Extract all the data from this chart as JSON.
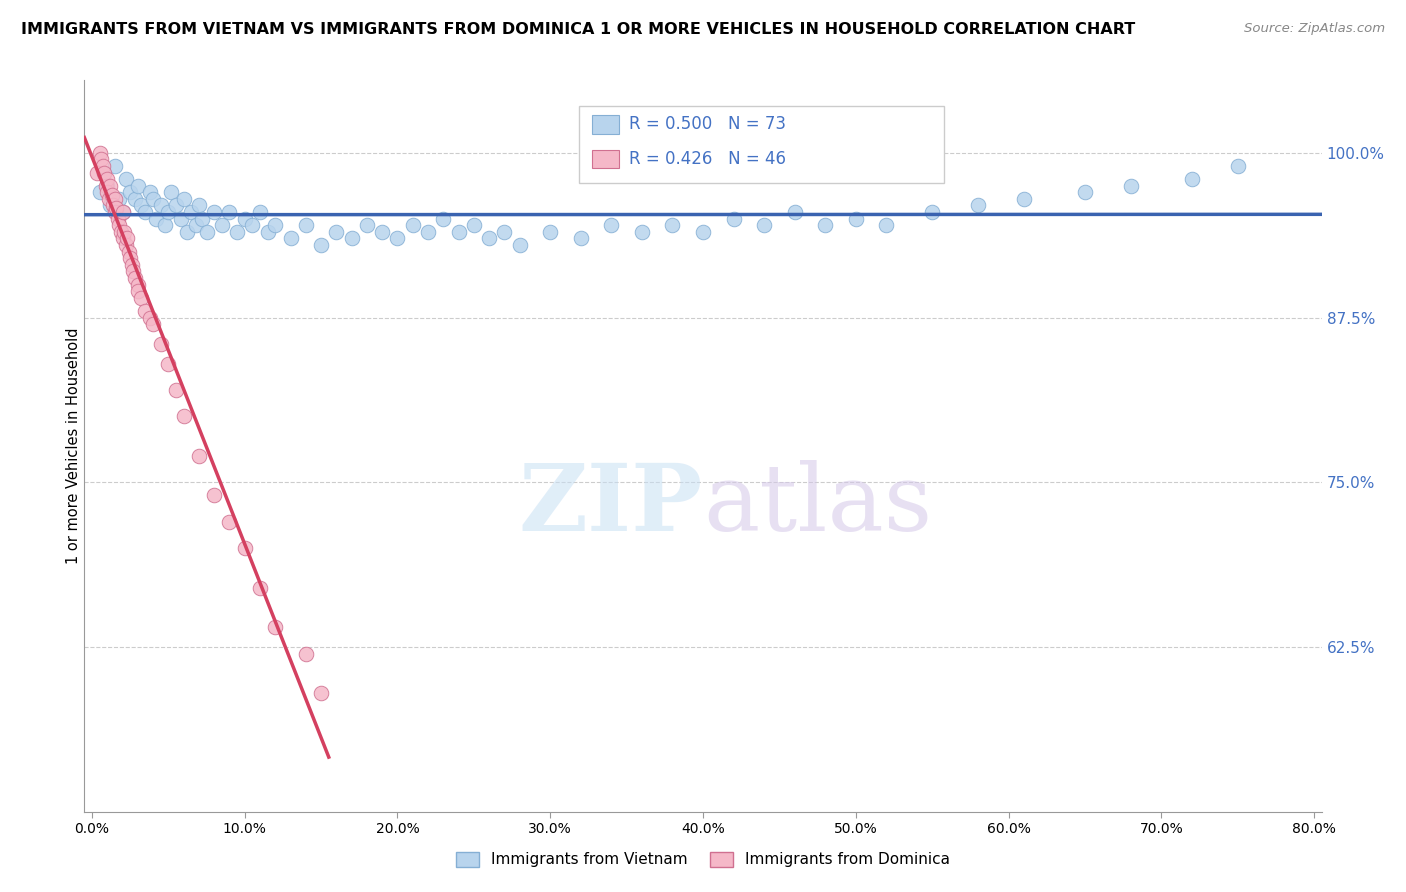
{
  "title": "IMMIGRANTS FROM VIETNAM VS IMMIGRANTS FROM DOMINICA 1 OR MORE VEHICLES IN HOUSEHOLD CORRELATION CHART",
  "source": "Source: ZipAtlas.com",
  "ylabel": "1 or more Vehicles in Household",
  "ytick_labels": [
    "62.5%",
    "75.0%",
    "87.5%",
    "100.0%"
  ],
  "yticks": [
    0.625,
    0.75,
    0.875,
    1.0
  ],
  "xlim": [
    -0.005,
    0.805
  ],
  "ylim": [
    0.5,
    1.055
  ],
  "R_vietnam": 0.5,
  "N_vietnam": 73,
  "R_dominica": 0.426,
  "N_dominica": 46,
  "color_vietnam": "#b8d4ed",
  "color_dominica": "#f5b8c8",
  "color_vietnam_line": "#3a63b0",
  "color_dominica_line": "#d44060",
  "legend_vietnam": "Immigrants from Vietnam",
  "legend_dominica": "Immigrants from Dominica",
  "watermark_zip": "ZIP",
  "watermark_atlas": "atlas",
  "title_fontsize": 11.5,
  "source_fontsize": 9.5
}
